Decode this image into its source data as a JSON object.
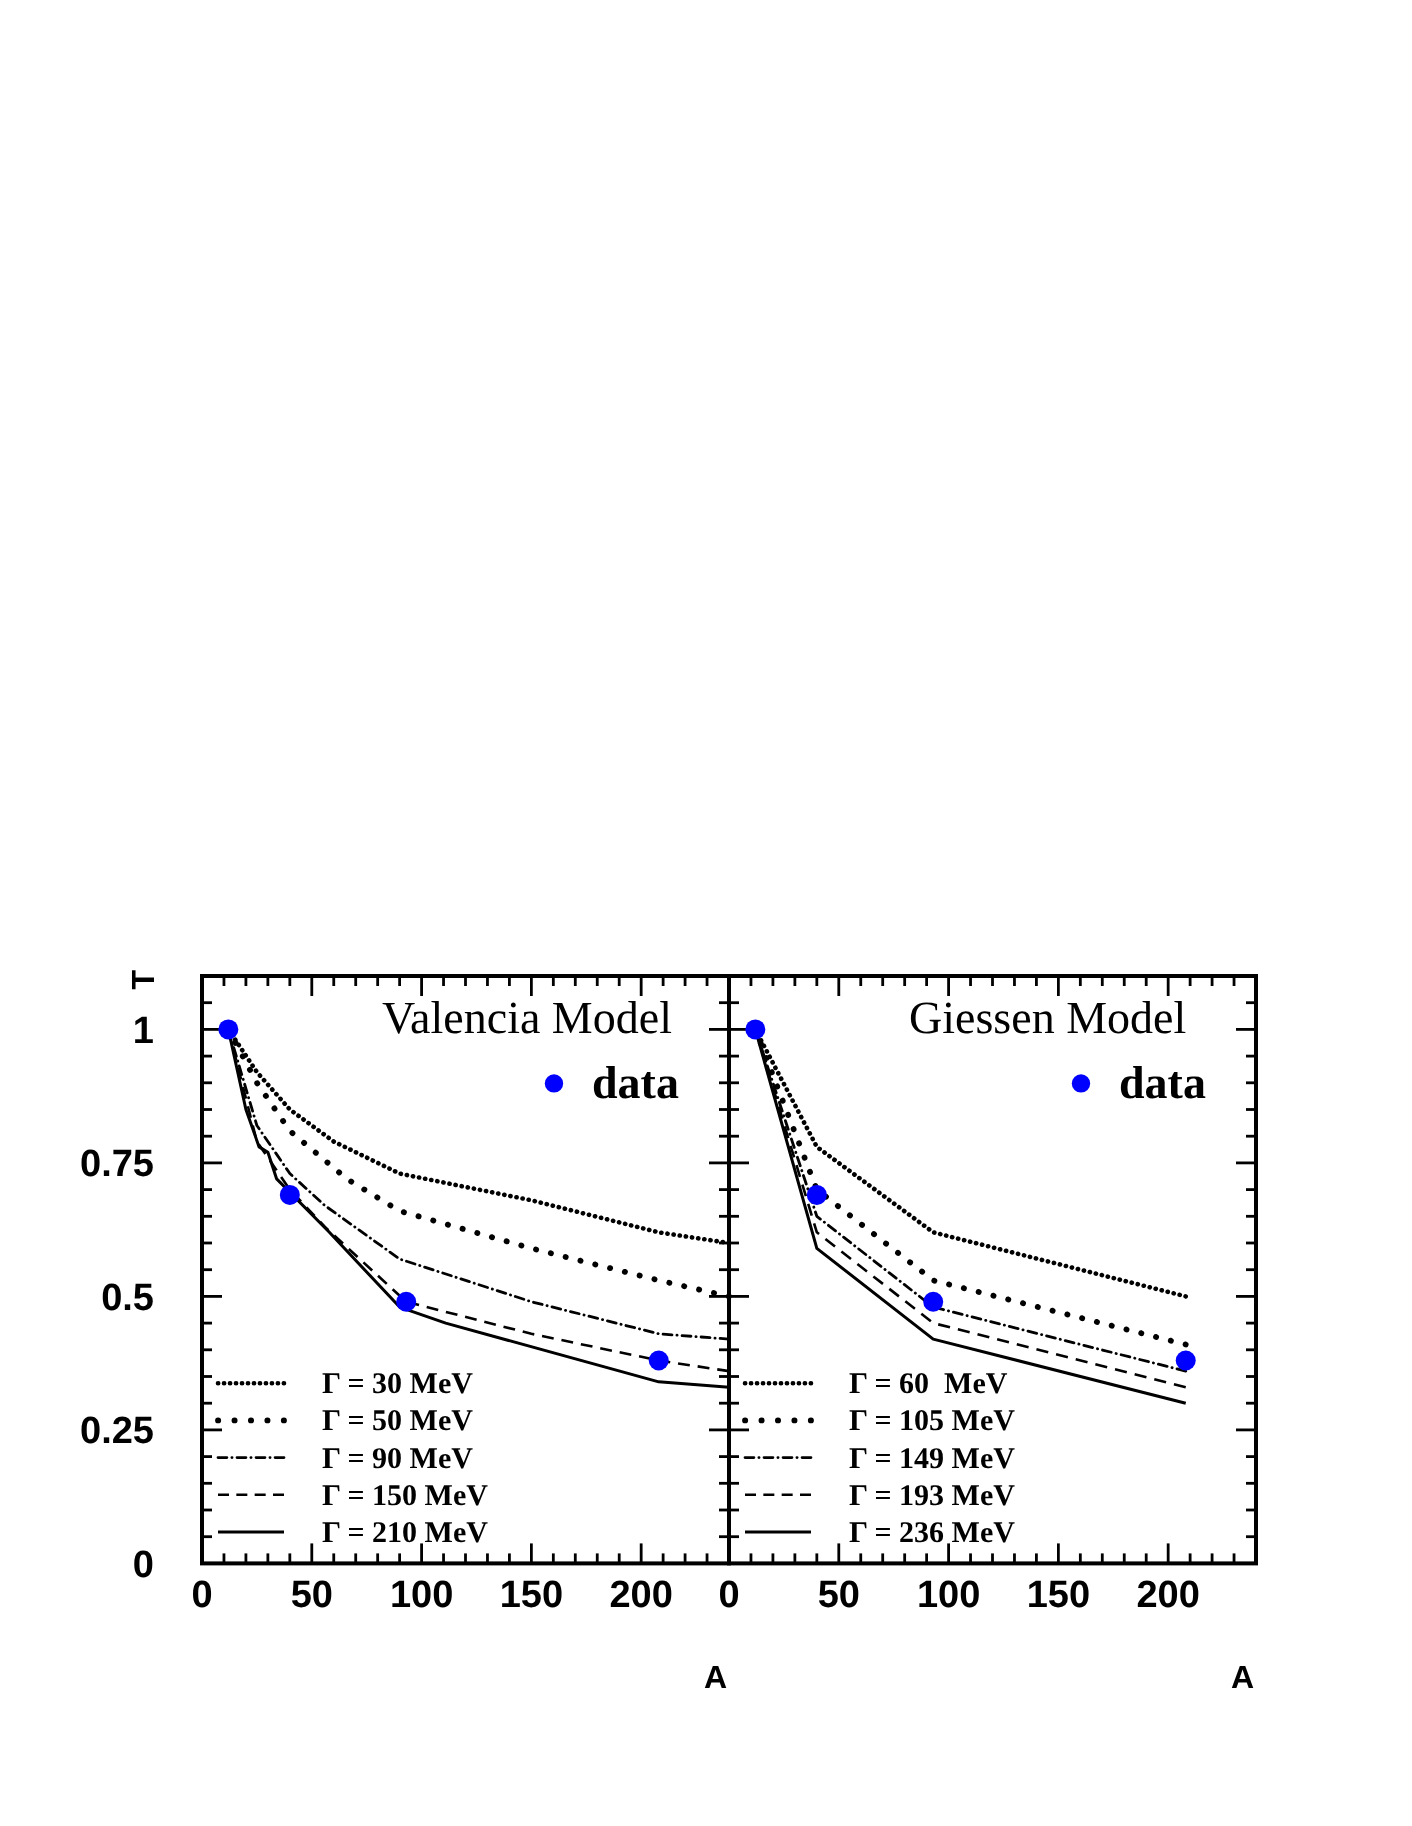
{
  "chart_data": [
    {
      "type": "line",
      "title": "Valencia Model",
      "xlabel": "A",
      "ylabel": "T",
      "xlim": [
        0,
        240
      ],
      "ylim": [
        0,
        1.1
      ],
      "xticks": [
        0,
        {
          "value": 10,
          "label": null
        },
        {
          "value": 20,
          "label": null
        },
        {
          "value": 30,
          "label": null
        },
        {
          "value": 40,
          "label": null
        },
        50,
        {
          "value": 60,
          "label": null
        },
        {
          "value": 70,
          "label": null
        },
        {
          "value": 80,
          "label": null
        },
        {
          "value": 90,
          "label": null
        },
        100,
        {
          "value": 110,
          "label": null
        },
        {
          "value": 120,
          "label": null
        },
        {
          "value": 130,
          "label": null
        },
        {
          "value": 140,
          "label": null
        },
        150,
        {
          "value": 160,
          "label": null
        },
        {
          "value": 170,
          "label": null
        },
        {
          "value": 180,
          "label": null
        },
        {
          "value": 190,
          "label": null
        },
        200,
        {
          "value": 210,
          "label": null
        },
        {
          "value": 220,
          "label": null
        },
        {
          "value": 230,
          "label": null
        }
      ],
      "yticks": [
        0,
        {
          "value": 0.05,
          "label": null
        },
        {
          "value": 0.1,
          "label": null
        },
        {
          "value": 0.15,
          "label": null
        },
        {
          "value": 0.2,
          "label": null
        },
        0.25,
        {
          "value": 0.3,
          "label": null
        },
        {
          "value": 0.35,
          "label": null
        },
        {
          "value": 0.4,
          "label": null
        },
        {
          "value": 0.45,
          "label": null
        },
        0.5,
        {
          "value": 0.55,
          "label": null
        },
        {
          "value": 0.6,
          "label": null
        },
        {
          "value": 0.65,
          "label": null
        },
        {
          "value": 0.7,
          "label": null
        },
        0.75,
        {
          "value": 0.8,
          "label": null
        },
        {
          "value": 0.85,
          "label": null
        },
        {
          "value": 0.9,
          "label": null
        },
        {
          "value": 0.95,
          "label": null
        },
        1,
        {
          "value": 1.05,
          "label": null
        }
      ],
      "legend": "bottom left",
      "series": [
        {
          "name": "Γ = 30 MeV",
          "color": "#000000",
          "line_style": "dotted",
          "x": [
            12,
            25,
            40,
            60,
            90,
            150,
            208,
            240
          ],
          "values": [
            1,
            0.92,
            0.85,
            0.79,
            0.73,
            0.68,
            0.62,
            0.6
          ]
        },
        {
          "name": "Γ = 50 MeV",
          "color": "#000000",
          "line_style": "loosely dotted",
          "x": [
            12,
            25,
            40,
            66,
            90,
            150,
            208,
            240
          ],
          "values": [
            1,
            0.9,
            0.81,
            0.72,
            0.66,
            0.59,
            0.53,
            0.5
          ]
        },
        {
          "name": "Γ = 90 MeV",
          "color": "#000000",
          "line_style": "dashdot",
          "x": [
            12,
            25,
            40,
            56,
            90,
            150,
            208,
            240
          ],
          "values": [
            1,
            0.82,
            0.73,
            0.67,
            0.57,
            0.49,
            0.43,
            0.42
          ]
        },
        {
          "name": "Γ = 150 MeV",
          "color": "#000000",
          "line_style": "dashed",
          "x": [
            12,
            25,
            40,
            56,
            93,
            150,
            208,
            240
          ],
          "values": [
            1,
            0.79,
            0.7,
            0.63,
            0.49,
            0.43,
            0.38,
            0.36
          ]
        },
        {
          "name": "Γ = 210 MeV",
          "color": "#000000",
          "line_style": "solid",
          "x": [
            12,
            20,
            26,
            30,
            34,
            58,
            90,
            111,
            208,
            240
          ],
          "values": [
            1,
            0.85,
            0.78,
            0.77,
            0.72,
            0.62,
            0.48,
            0.45,
            0.34,
            0.33
          ]
        },
        {
          "name": "data",
          "type": "scatter",
          "color": "#0000ff",
          "marker": "circle",
          "x": [
            12,
            40,
            93,
            208
          ],
          "values": [
            1,
            0.69,
            0.49,
            0.38
          ]
        }
      ]
    },
    {
      "type": "line",
      "title": "Giessen Model",
      "xlabel": "A",
      "xlim": [
        0,
        240
      ],
      "ylim": [
        0,
        1.1
      ],
      "tick_labels": "x",
      "xticks": [
        0,
        {
          "value": 10,
          "label": null
        },
        {
          "value": 20,
          "label": null
        },
        {
          "value": 30,
          "label": null
        },
        {
          "value": 40,
          "label": null
        },
        50,
        {
          "value": 60,
          "label": null
        },
        {
          "value": 70,
          "label": null
        },
        {
          "value": 80,
          "label": null
        },
        {
          "value": 90,
          "label": null
        },
        100,
        {
          "value": 110,
          "label": null
        },
        {
          "value": 120,
          "label": null
        },
        {
          "value": 130,
          "label": null
        },
        {
          "value": 140,
          "label": null
        },
        150,
        {
          "value": 160,
          "label": null
        },
        {
          "value": 170,
          "label": null
        },
        {
          "value": 180,
          "label": null
        },
        {
          "value": 190,
          "label": null
        },
        200,
        {
          "value": 210,
          "label": null
        },
        {
          "value": 220,
          "label": null
        },
        {
          "value": 230,
          "label": null
        }
      ],
      "yticks": [
        0,
        {
          "value": 0.05,
          "label": null
        },
        {
          "value": 0.1,
          "label": null
        },
        {
          "value": 0.15,
          "label": null
        },
        {
          "value": 0.2,
          "label": null
        },
        0.25,
        {
          "value": 0.3,
          "label": null
        },
        {
          "value": 0.35,
          "label": null
        },
        {
          "value": 0.4,
          "label": null
        },
        {
          "value": 0.45,
          "label": null
        },
        0.5,
        {
          "value": 0.55,
          "label": null
        },
        {
          "value": 0.6,
          "label": null
        },
        {
          "value": 0.65,
          "label": null
        },
        {
          "value": 0.7,
          "label": null
        },
        0.75,
        {
          "value": 0.8,
          "label": null
        },
        {
          "value": 0.85,
          "label": null
        },
        {
          "value": 0.9,
          "label": null
        },
        {
          "value": 0.95,
          "label": null
        },
        1,
        {
          "value": 1.05,
          "label": null
        }
      ],
      "legend": "bottom left",
      "series": [
        {
          "name": "Γ = 60  MeV",
          "color": "#000000",
          "line_style": "dotted",
          "x": [
            12,
            40,
            93,
            208
          ],
          "values": [
            1,
            0.78,
            0.62,
            0.5
          ]
        },
        {
          "name": "Γ = 105 MeV",
          "color": "#000000",
          "line_style": "loosely dotted",
          "x": [
            12,
            40,
            93,
            208
          ],
          "values": [
            1,
            0.7,
            0.53,
            0.41
          ]
        },
        {
          "name": "Γ = 149 MeV",
          "color": "#000000",
          "line_style": "dashdot",
          "x": [
            12,
            40,
            93,
            208
          ],
          "values": [
            1,
            0.65,
            0.48,
            0.36
          ]
        },
        {
          "name": "Γ = 193 MeV",
          "color": "#000000",
          "line_style": "dashed",
          "x": [
            12,
            40,
            93,
            208
          ],
          "values": [
            1,
            0.62,
            0.45,
            0.33
          ]
        },
        {
          "name": "Γ = 236 MeV",
          "color": "#000000",
          "line_style": "solid",
          "x": [
            12,
            40,
            93,
            208
          ],
          "values": [
            1,
            0.59,
            0.42,
            0.3
          ]
        },
        {
          "name": "data",
          "type": "scatter",
          "color": "#0000ff",
          "marker": "circle",
          "x": [
            12,
            40,
            93,
            208
          ],
          "values": [
            1,
            0.69,
            0.49,
            0.38
          ]
        }
      ]
    }
  ]
}
